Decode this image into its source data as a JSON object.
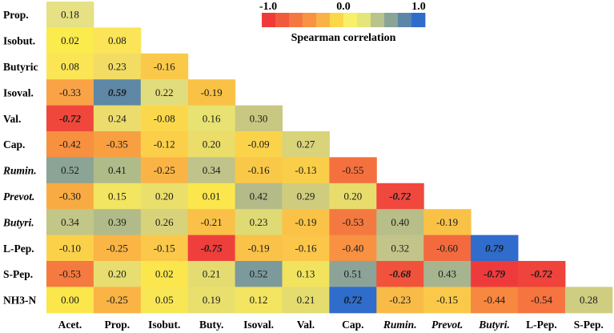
{
  "chart_data": {
    "type": "heatmap",
    "title": "",
    "legend": {
      "title": "Spearman correlation",
      "ticks": [
        "-1.0",
        "0.0",
        "1.0"
      ],
      "range": [
        -1.0,
        1.0
      ],
      "placement": "top-right",
      "colors": [
        "#f03a3a",
        "#f25a3d",
        "#f4773f",
        "#f79343",
        "#f9b247",
        "#fbd84a",
        "#f7f068",
        "#e4e57b",
        "#b8c48c",
        "#8aa496",
        "#5b86a9",
        "#2f6ccb"
      ]
    },
    "row_labels": [
      {
        "text": "Prop.",
        "italic": false
      },
      {
        "text": "Isobut.",
        "italic": false
      },
      {
        "text": "Butyric",
        "italic": false
      },
      {
        "text": "Isoval.",
        "italic": false
      },
      {
        "text": "Val.",
        "italic": false
      },
      {
        "text": "Cap.",
        "italic": false
      },
      {
        "text": "Rumin.",
        "italic": true
      },
      {
        "text": "Prevot.",
        "italic": true
      },
      {
        "text": "Butyri.",
        "italic": true
      },
      {
        "text": "L-Pep.",
        "italic": false
      },
      {
        "text": "S-Pep.",
        "italic": false
      },
      {
        "text": "NH3-N",
        "italic": false
      }
    ],
    "col_labels": [
      {
        "text": "Acet.",
        "italic": false
      },
      {
        "text": "Prop.",
        "italic": false
      },
      {
        "text": "Isobut.",
        "italic": false
      },
      {
        "text": "Buty.",
        "italic": false
      },
      {
        "text": "Isoval.",
        "italic": false
      },
      {
        "text": "Val.",
        "italic": false
      },
      {
        "text": "Cap.",
        "italic": false
      },
      {
        "text": "Rumin.",
        "italic": true
      },
      {
        "text": "Prevot.",
        "italic": true
      },
      {
        "text": "Butyri.",
        "italic": true
      },
      {
        "text": "L-Pep.",
        "italic": false
      },
      {
        "text": "S-Pep.",
        "italic": false
      }
    ],
    "rows": [
      [
        {
          "v": "0.18",
          "c": "#e5e184"
        }
      ],
      [
        {
          "v": "0.02",
          "c": "#fbeb4c"
        },
        {
          "v": "0.08",
          "c": "#fbe457"
        }
      ],
      [
        {
          "v": "0.08",
          "c": "#fbe555"
        },
        {
          "v": "0.23",
          "c": "#f2dc64"
        },
        {
          "v": "-0.16",
          "c": "#fbc94a"
        }
      ],
      [
        {
          "v": "-0.33",
          "c": "#f9a346"
        },
        {
          "v": "0.59",
          "c": "#5f87a6",
          "b": true
        },
        {
          "v": "0.22",
          "c": "#e2dd7c"
        },
        {
          "v": "-0.19",
          "c": "#f9c247"
        }
      ],
      [
        {
          "v": "-0.72",
          "c": "#f0473c",
          "b": true
        },
        {
          "v": "0.24",
          "c": "#ecdc6e"
        },
        {
          "v": "-0.08",
          "c": "#fbd84b"
        },
        {
          "v": "0.16",
          "c": "#e8e272"
        },
        {
          "v": "0.30",
          "c": "#c9c882"
        }
      ],
      [
        {
          "v": "-0.42",
          "c": "#f7903f"
        },
        {
          "v": "-0.35",
          "c": "#f89f41"
        },
        {
          "v": "-0.12",
          "c": "#fbcf4a"
        },
        {
          "v": "0.20",
          "c": "#eadd69"
        },
        {
          "v": "-0.09",
          "c": "#fbd34b"
        },
        {
          "v": "0.27",
          "c": "#d9d37a"
        }
      ],
      [
        {
          "v": "0.52",
          "c": "#8ba496"
        },
        {
          "v": "0.41",
          "c": "#b0bb8a"
        },
        {
          "v": "-0.25",
          "c": "#fab446"
        },
        {
          "v": "0.34",
          "c": "#c0c48a"
        },
        {
          "v": "-0.16",
          "c": "#fac849"
        },
        {
          "v": "-0.13",
          "c": "#fbce4a"
        },
        {
          "v": "-0.55",
          "c": "#f4713f"
        }
      ],
      [
        {
          "v": "-0.30",
          "c": "#f9ab43"
        },
        {
          "v": "0.15",
          "c": "#f2e562"
        },
        {
          "v": "0.20",
          "c": "#eadf6b"
        },
        {
          "v": "0.01",
          "c": "#fbe64d"
        },
        {
          "v": "0.42",
          "c": "#b4bb89"
        },
        {
          "v": "0.29",
          "c": "#cfcd7d"
        },
        {
          "v": "0.20",
          "c": "#e8dd6c"
        },
        {
          "v": "-0.72",
          "c": "#f0483d",
          "b": true
        }
      ],
      [
        {
          "v": "0.34",
          "c": "#c2c687"
        },
        {
          "v": "0.39",
          "c": "#b1bb8a"
        },
        {
          "v": "0.26",
          "c": "#d8d27b"
        },
        {
          "v": "-0.21",
          "c": "#fac047"
        },
        {
          "v": "0.23",
          "c": "#e0da74"
        },
        {
          "v": "-0.19",
          "c": "#fac348"
        },
        {
          "v": "-0.53",
          "c": "#f47940"
        },
        {
          "v": "0.40",
          "c": "#b7be88"
        },
        {
          "v": "-0.19",
          "c": "#f9c247"
        }
      ],
      [
        {
          "v": "-0.10",
          "c": "#fbd14a"
        },
        {
          "v": "-0.25",
          "c": "#fab545"
        },
        {
          "v": "-0.15",
          "c": "#fbc849"
        },
        {
          "v": "-0.75",
          "c": "#ef3f3c",
          "b": true
        },
        {
          "v": "-0.19",
          "c": "#fac248"
        },
        {
          "v": "-0.16",
          "c": "#fbc64a"
        },
        {
          "v": "-0.40",
          "c": "#f89142"
        },
        {
          "v": "0.32",
          "c": "#c3c48a"
        },
        {
          "v": "-0.60",
          "c": "#f36a3e"
        },
        {
          "v": "0.79",
          "c": "#2f6ccb",
          "b": true
        }
      ],
      [
        {
          "v": "-0.53",
          "c": "#f47a3f"
        },
        {
          "v": "0.20",
          "c": "#e7dd70"
        },
        {
          "v": "0.02",
          "c": "#fbe64e"
        },
        {
          "v": "0.21",
          "c": "#e5dc71"
        },
        {
          "v": "0.52",
          "c": "#7c9a9b"
        },
        {
          "v": "0.13",
          "c": "#f2e35f"
        },
        {
          "v": "0.51",
          "c": "#8ba497"
        },
        {
          "v": "-0.68",
          "c": "#f1523c",
          "b": true
        },
        {
          "v": "0.43",
          "c": "#a6b590"
        },
        {
          "v": "-0.79",
          "c": "#ef3a3c",
          "b": true
        },
        {
          "v": "-0.72",
          "c": "#ef433c",
          "b": true
        }
      ],
      [
        {
          "v": "0.00",
          "c": "#fbe74b"
        },
        {
          "v": "-0.25",
          "c": "#fab345"
        },
        {
          "v": "0.05",
          "c": "#f9e655"
        },
        {
          "v": "0.19",
          "c": "#e9df6c"
        },
        {
          "v": "0.12",
          "c": "#f3e461"
        },
        {
          "v": "0.21",
          "c": "#e5dc6f"
        },
        {
          "v": "0.72",
          "c": "#2f6ccb",
          "b": true
        },
        {
          "v": "-0.23",
          "c": "#f9bb47"
        },
        {
          "v": "-0.15",
          "c": "#fac949"
        },
        {
          "v": "-0.44",
          "c": "#f7883f"
        },
        {
          "v": "-0.54",
          "c": "#f5743f"
        },
        {
          "v": "0.28",
          "c": "#cfcd80"
        }
      ]
    ]
  }
}
